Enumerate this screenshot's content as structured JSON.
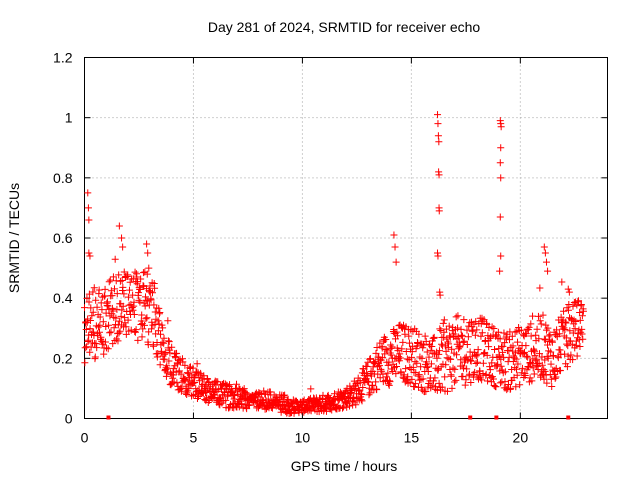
{
  "chart_data": {
    "type": "scatter",
    "title": "Day 281 of 2024, SRMTID for receiver echo",
    "xlabel": "GPS time / hours",
    "ylabel": "SRMTID / TECUs",
    "xlim": [
      0,
      24
    ],
    "ylim": [
      0,
      1.2
    ],
    "x_ticks": [
      0,
      5,
      10,
      15,
      20
    ],
    "x_tick_labels": [
      "0",
      "5",
      "10",
      "15",
      "20"
    ],
    "y_ticks": [
      0,
      0.2,
      0.4,
      0.6,
      0.8,
      1.0,
      1.2
    ],
    "y_tick_labels": [
      "0",
      "0.2",
      "0.4",
      "0.6",
      "0.8",
      "1",
      "1.2"
    ],
    "grid": true,
    "marker": "plus",
    "color": "#ff0000",
    "series": [
      {
        "name": "SRMTID",
        "profile": {
          "x": [
            0.0,
            0.3,
            0.8,
            1.3,
            1.8,
            2.3,
            2.8,
            3.2,
            3.6,
            4.0,
            4.5,
            5.0,
            5.5,
            6.0,
            6.5,
            7.0,
            7.5,
            8.0,
            8.5,
            9.0,
            9.5,
            10.0,
            10.5,
            11.0,
            11.5,
            12.0,
            12.5,
            13.0,
            13.5,
            14.0,
            14.5,
            15.0,
            15.5,
            16.0,
            16.5,
            17.0,
            17.5,
            18.0,
            18.5,
            19.0,
            19.5,
            20.0,
            20.5,
            21.0,
            21.5,
            22.0,
            22.5,
            22.9
          ],
          "y": [
            0.29,
            0.31,
            0.32,
            0.36,
            0.38,
            0.37,
            0.37,
            0.34,
            0.22,
            0.17,
            0.14,
            0.12,
            0.1,
            0.085,
            0.075,
            0.075,
            0.065,
            0.06,
            0.06,
            0.05,
            0.04,
            0.04,
            0.045,
            0.05,
            0.06,
            0.07,
            0.09,
            0.13,
            0.18,
            0.2,
            0.22,
            0.21,
            0.19,
            0.17,
            0.2,
            0.22,
            0.23,
            0.24,
            0.22,
            0.2,
            0.19,
            0.21,
            0.22,
            0.24,
            0.2,
            0.26,
            0.29,
            0.33
          ],
          "spread": [
            0.12,
            0.12,
            0.12,
            0.12,
            0.12,
            0.12,
            0.12,
            0.11,
            0.08,
            0.07,
            0.06,
            0.05,
            0.045,
            0.04,
            0.04,
            0.04,
            0.035,
            0.03,
            0.03,
            0.03,
            0.025,
            0.02,
            0.025,
            0.03,
            0.03,
            0.035,
            0.045,
            0.06,
            0.08,
            0.09,
            0.1,
            0.1,
            0.1,
            0.1,
            0.12,
            0.12,
            0.12,
            0.11,
            0.1,
            0.1,
            0.1,
            0.1,
            0.1,
            0.11,
            0.1,
            0.1,
            0.1,
            0.08
          ]
        },
        "highlights": [
          {
            "x": 0.15,
            "y": 0.75
          },
          {
            "x": 0.18,
            "y": 0.7
          },
          {
            "x": 0.2,
            "y": 0.66
          },
          {
            "x": 0.2,
            "y": 0.55
          },
          {
            "x": 0.25,
            "y": 0.54
          },
          {
            "x": 1.6,
            "y": 0.64
          },
          {
            "x": 1.7,
            "y": 0.6
          },
          {
            "x": 1.75,
            "y": 0.57
          },
          {
            "x": 2.85,
            "y": 0.58
          },
          {
            "x": 2.9,
            "y": 0.55
          },
          {
            "x": 2.95,
            "y": 0.5
          },
          {
            "x": 14.2,
            "y": 0.61
          },
          {
            "x": 14.25,
            "y": 0.57
          },
          {
            "x": 14.3,
            "y": 0.52
          },
          {
            "x": 16.2,
            "y": 1.01
          },
          {
            "x": 16.22,
            "y": 0.98
          },
          {
            "x": 16.24,
            "y": 0.94
          },
          {
            "x": 16.26,
            "y": 0.92
          },
          {
            "x": 16.25,
            "y": 0.82
          },
          {
            "x": 16.27,
            "y": 0.81
          },
          {
            "x": 16.27,
            "y": 0.7
          },
          {
            "x": 16.28,
            "y": 0.69
          },
          {
            "x": 16.2,
            "y": 0.55
          },
          {
            "x": 16.22,
            "y": 0.54
          },
          {
            "x": 16.3,
            "y": 0.42
          },
          {
            "x": 16.32,
            "y": 0.41
          },
          {
            "x": 19.08,
            "y": 0.99
          },
          {
            "x": 19.1,
            "y": 0.98
          },
          {
            "x": 19.12,
            "y": 0.97
          },
          {
            "x": 19.1,
            "y": 0.9
          },
          {
            "x": 19.08,
            "y": 0.85
          },
          {
            "x": 19.1,
            "y": 0.8
          },
          {
            "x": 19.08,
            "y": 0.67
          },
          {
            "x": 19.1,
            "y": 0.54
          },
          {
            "x": 19.05,
            "y": 0.49
          },
          {
            "x": 21.1,
            "y": 0.57
          },
          {
            "x": 21.15,
            "y": 0.55
          },
          {
            "x": 21.2,
            "y": 0.52
          },
          {
            "x": 21.25,
            "y": 0.49
          },
          {
            "x": 22.2,
            "y": 0.43
          },
          {
            "x": 22.25,
            "y": 0.42
          }
        ],
        "zero_markers": [
          1.1,
          17.7,
          18.9,
          22.2
        ]
      }
    ]
  }
}
